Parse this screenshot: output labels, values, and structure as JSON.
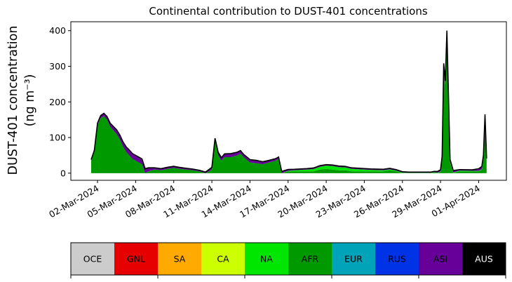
{
  "chart_data": {
    "type": "area",
    "title": "Continental contribution to DUST-401 concentrations",
    "ylabel_line1": "DUST-401 concentration",
    "ylabel_line2": "(ng m⁻³)",
    "xlabel": "",
    "ylim": [
      -20,
      425
    ],
    "yticks": [
      0,
      100,
      200,
      300,
      400
    ],
    "x_start": "2024-03-01T11:00",
    "x_end": "2024-04-01T15:00",
    "xticks": [
      "02-Mar-2024",
      "05-Mar-2024",
      "08-Mar-2024",
      "11-Mar-2024",
      "14-Mar-2024",
      "17-Mar-2024",
      "20-Mar-2024",
      "23-Mar-2024",
      "26-Mar-2024",
      "29-Mar-2024",
      "01-Apr-2024"
    ],
    "stack_order": [
      "AFR",
      "NA",
      "ASI"
    ],
    "total_line_color": "#000000",
    "series": [
      {
        "name": "AFR",
        "color": "#009900",
        "x": [
          "2024-03-01T12:00",
          "2024-03-01T18:00",
          "2024-03-02T00:00",
          "2024-03-02T06:00",
          "2024-03-02T12:00",
          "2024-03-02T18:00",
          "2024-03-03T00:00",
          "2024-03-03T06:00",
          "2024-03-03T12:00",
          "2024-03-03T18:00",
          "2024-03-04T00:00",
          "2024-03-04T06:00",
          "2024-03-04T12:00",
          "2024-03-04T18:00",
          "2024-03-05T00:00",
          "2024-03-05T06:00",
          "2024-03-05T12:00",
          "2024-03-05T18:00",
          "2024-03-06T00:00",
          "2024-03-06T12:00",
          "2024-03-07T00:00",
          "2024-03-07T12:00",
          "2024-03-08T00:00",
          "2024-03-08T12:00",
          "2024-03-09T00:00",
          "2024-03-09T12:00",
          "2024-03-10T00:00",
          "2024-03-10T12:00",
          "2024-03-11T00:00",
          "2024-03-11T06:00",
          "2024-03-11T12:00",
          "2024-03-11T18:00",
          "2024-03-12T00:00",
          "2024-03-12T12:00",
          "2024-03-13T00:00",
          "2024-03-13T06:00",
          "2024-03-13T12:00",
          "2024-03-14T00:00",
          "2024-03-14T12:00",
          "2024-03-15T00:00",
          "2024-03-15T12:00",
          "2024-03-16T00:00",
          "2024-03-16T06:00",
          "2024-03-16T12:00",
          "2024-03-17T00:00",
          "2024-03-17T12:00",
          "2024-03-18T00:00",
          "2024-03-18T12:00",
          "2024-03-19T00:00",
          "2024-03-19T12:00",
          "2024-03-20T00:00",
          "2024-03-20T12:00",
          "2024-03-21T00:00",
          "2024-03-21T12:00",
          "2024-03-22T00:00",
          "2024-03-22T12:00",
          "2024-03-23T00:00",
          "2024-03-23T12:00",
          "2024-03-24T00:00",
          "2024-03-24T12:00",
          "2024-03-25T00:00",
          "2024-03-25T12:00",
          "2024-03-26T00:00",
          "2024-03-26T12:00",
          "2024-03-27T00:00",
          "2024-03-27T12:00",
          "2024-03-28T00:00",
          "2024-03-28T06:00",
          "2024-03-28T12:00",
          "2024-03-28T18:00",
          "2024-03-29T00:00",
          "2024-03-29T03:00",
          "2024-03-29T06:00",
          "2024-03-29T09:00",
          "2024-03-29T12:00",
          "2024-03-29T18:00",
          "2024-03-30T00:00",
          "2024-03-30T12:00",
          "2024-03-31T00:00",
          "2024-03-31T12:00",
          "2024-04-01T00:00",
          "2024-04-01T06:00",
          "2024-04-01T09:00",
          "2024-04-01T12:00",
          "2024-04-01T15:00"
        ],
        "values": [
          35,
          60,
          135,
          155,
          160,
          150,
          130,
          120,
          110,
          95,
          75,
          60,
          50,
          40,
          35,
          30,
          25,
          0,
          5,
          10,
          8,
          12,
          15,
          12,
          10,
          8,
          5,
          0,
          10,
          90,
          50,
          35,
          45,
          45,
          50,
          55,
          45,
          30,
          28,
          25,
          30,
          35,
          40,
          0,
          5,
          5,
          5,
          5,
          5,
          10,
          12,
          10,
          8,
          8,
          5,
          5,
          5,
          5,
          5,
          5,
          8,
          5,
          0,
          0,
          0,
          0,
          0,
          0,
          2,
          0,
          3,
          40,
          300,
          250,
          390,
          30,
          0,
          5,
          5,
          5,
          5,
          10,
          40,
          155,
          30
        ]
      },
      {
        "name": "NA",
        "color": "#00e600",
        "x": [
          "2024-03-01T12:00",
          "2024-03-02T12:00",
          "2024-03-05T12:00",
          "2024-03-07T12:00",
          "2024-03-10T12:00",
          "2024-03-13T12:00",
          "2024-03-16T12:00",
          "2024-03-17T12:00",
          "2024-03-18T12:00",
          "2024-03-19T12:00",
          "2024-03-20T12:00",
          "2024-03-21T12:00",
          "2024-03-22T12:00",
          "2024-03-23T12:00",
          "2024-03-24T12:00",
          "2024-03-25T12:00",
          "2024-03-26T12:00",
          "2024-03-27T12:00",
          "2024-03-28T12:00",
          "2024-03-29T12:00",
          "2024-03-30T12:00",
          "2024-04-01T15:00"
        ],
        "values": [
          0,
          0,
          0,
          0,
          0,
          0,
          0,
          3,
          5,
          8,
          10,
          8,
          6,
          4,
          3,
          2,
          1,
          1,
          1,
          2,
          2,
          1
        ]
      },
      {
        "name": "ASI",
        "color": "#660099",
        "x": [
          "2024-03-01T12:00",
          "2024-03-02T12:00",
          "2024-03-03T12:00",
          "2024-03-04T12:00",
          "2024-03-05T12:00",
          "2024-03-06T12:00",
          "2024-03-10T12:00",
          "2024-03-11T06:00",
          "2024-03-12T12:00",
          "2024-03-13T12:00",
          "2024-03-14T12:00",
          "2024-03-15T12:00",
          "2024-03-16T12:00",
          "2024-03-17T12:00",
          "2024-03-18T12:00",
          "2024-03-19T12:00",
          "2024-03-20T12:00",
          "2024-03-21T12:00",
          "2024-03-22T12:00",
          "2024-03-23T12:00",
          "2024-03-24T12:00",
          "2024-03-25T12:00",
          "2024-03-26T12:00",
          "2024-03-27T12:00",
          "2024-03-28T12:00",
          "2024-03-29T12:00",
          "2024-03-30T12:00",
          "2024-03-31T12:00",
          "2024-04-01T15:00"
        ],
        "values": [
          3,
          8,
          12,
          15,
          15,
          5,
          3,
          8,
          10,
          8,
          8,
          6,
          5,
          3,
          3,
          3,
          3,
          3,
          3,
          3,
          3,
          3,
          2,
          2,
          2,
          8,
          3,
          3,
          10
        ]
      }
    ],
    "legend": {
      "placement": "bottom",
      "entries": [
        {
          "name": "OCE",
          "color": "#cccccc",
          "text_color": "#000000"
        },
        {
          "name": "GNL",
          "color": "#e60000",
          "text_color": "#000000"
        },
        {
          "name": "SA",
          "color": "#ffaa00",
          "text_color": "#000000"
        },
        {
          "name": "CA",
          "color": "#ccff00",
          "text_color": "#000000"
        },
        {
          "name": "NA",
          "color": "#00e600",
          "text_color": "#000000"
        },
        {
          "name": "AFR",
          "color": "#009900",
          "text_color": "#000000"
        },
        {
          "name": "EUR",
          "color": "#00a3b8",
          "text_color": "#000000"
        },
        {
          "name": "RUS",
          "color": "#0033e6",
          "text_color": "#000000"
        },
        {
          "name": "ASI",
          "color": "#660099",
          "text_color": "#000000"
        },
        {
          "name": "AUS",
          "color": "#000000",
          "text_color": "#ffffff"
        }
      ]
    }
  }
}
